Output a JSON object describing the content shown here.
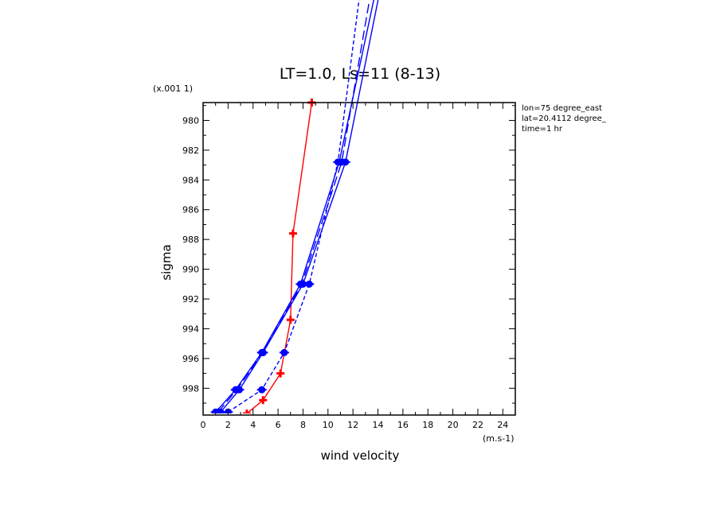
{
  "chart_data": {
    "type": "line",
    "title": "LT=1.0, Ls=11 (8-13)",
    "xlabel": "wind velocity",
    "ylabel": "sigma",
    "x_unit": "(m.s-1)",
    "y_scale_note": "(x.001 1)",
    "xlim": [
      0,
      25
    ],
    "ylim": [
      999.8,
      978.8
    ],
    "x_ticks": [
      0,
      2,
      4,
      6,
      8,
      10,
      12,
      14,
      16,
      18,
      20,
      22,
      24
    ],
    "x_tick_labels": [
      "0",
      "2",
      "4",
      "6",
      "8",
      "10",
      "12",
      "14",
      "16",
      "18",
      "20",
      "22",
      "24"
    ],
    "y_ticks": [
      980,
      982,
      984,
      986,
      988,
      990,
      992,
      994,
      996,
      998
    ],
    "y_tick_labels": [
      "980",
      "982",
      "984",
      "986",
      "988",
      "990",
      "992",
      "994",
      "996",
      "998"
    ],
    "annotations": [
      "lon=75 degree_east",
      "lat=20.4112 degree_",
      "time=1 hr"
    ],
    "grid": false,
    "series": [
      {
        "color": "#ff0000",
        "dash": "solid",
        "marker": "plus",
        "x": [
          3.5,
          4.8,
          6.2,
          7.0,
          7.2,
          8.7,
          8.7
        ],
        "y": [
          999.7,
          998.8,
          997.0,
          993.4,
          987.6,
          978.8,
          978.8
        ]
      },
      {
        "color": "#0000ff",
        "dash": "solid",
        "marker": "circle",
        "x": [
          1.0,
          2.6,
          4.7,
          7.8,
          10.9,
          14.5
        ],
        "y": [
          999.6,
          998.1,
          995.6,
          991.0,
          982.8,
          968.6
        ]
      },
      {
        "color": "#0000ff",
        "dash": "solid",
        "marker": "circle",
        "x": [
          1.4,
          2.9,
          4.8,
          8.0,
          11.4,
          14.8
        ],
        "y": [
          999.6,
          998.1,
          995.6,
          991.0,
          982.8,
          968.6
        ]
      },
      {
        "color": "#0000ff",
        "dash": "longdash",
        "marker": "circle",
        "x": [
          1.2,
          2.7,
          4.8,
          7.9,
          11.1,
          14.0
        ],
        "y": [
          999.6,
          998.1,
          995.6,
          991.0,
          982.8,
          968.6
        ]
      },
      {
        "color": "#0000ff",
        "dash": "dashed",
        "marker": "circle",
        "x": [
          2.0,
          4.7,
          6.5,
          8.5,
          10.8,
          13.0
        ],
        "y": [
          999.6,
          998.1,
          995.6,
          991.0,
          982.8,
          968.6
        ]
      }
    ]
  }
}
